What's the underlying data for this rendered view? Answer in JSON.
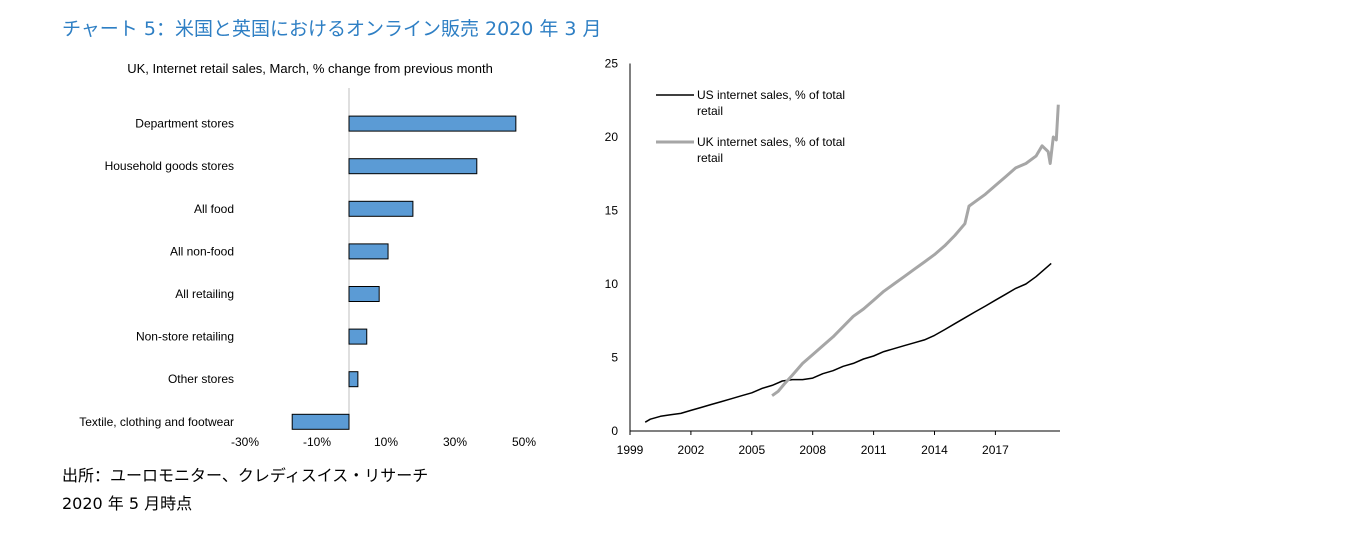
{
  "title": "チャート 5：米国と英国におけるオンライン販売 2020 年 3 月",
  "source": "出所：ユーロモニター、クレディスイス・リサーチ",
  "date_note": "2020 年 5 月時点",
  "colors": {
    "title": "#2e7fc4",
    "bar_fill": "#5b9bd5",
    "us_line": "#000000",
    "uk_line": "#a6a6a6"
  },
  "chart_data": [
    {
      "type": "bar",
      "orientation": "horizontal",
      "title": "UK, Internet retail sales, March, % change from previous month",
      "categories": [
        "Department stores",
        "Household goods stores",
        "All food",
        "All non-food",
        "All retailing",
        "Non-store retailing",
        "Other stores",
        "Textile, clothing and footwear"
      ],
      "values": [
        47,
        36,
        18,
        11,
        8.5,
        5,
        2.5,
        -16
      ],
      "x_tick_labels": [
        "-30%",
        "-10%",
        "10%",
        "30%",
        "50%"
      ],
      "xlim": [
        -30,
        50
      ],
      "grid": false
    },
    {
      "type": "line",
      "title": "",
      "ylim": [
        0,
        25
      ],
      "y_ticks": [
        0,
        5,
        10,
        15,
        20,
        25
      ],
      "x_ticks": [
        1999,
        2002,
        2005,
        2008,
        2011,
        2014,
        2017
      ],
      "legend_position": "top-left",
      "grid": false,
      "series": [
        {
          "name": "US internet sales, % of total retail",
          "points": [
            [
              1999.75,
              0.6
            ],
            [
              2000.0,
              0.8
            ],
            [
              2000.5,
              1.0
            ],
            [
              2001.0,
              1.1
            ],
            [
              2001.5,
              1.2
            ],
            [
              2002.0,
              1.4
            ],
            [
              2002.5,
              1.6
            ],
            [
              2003.0,
              1.8
            ],
            [
              2003.5,
              2.0
            ],
            [
              2004.0,
              2.2
            ],
            [
              2004.5,
              2.4
            ],
            [
              2005.0,
              2.6
            ],
            [
              2005.5,
              2.9
            ],
            [
              2006.0,
              3.1
            ],
            [
              2006.5,
              3.4
            ],
            [
              2007.0,
              3.5
            ],
            [
              2007.5,
              3.5
            ],
            [
              2008.0,
              3.6
            ],
            [
              2008.5,
              3.9
            ],
            [
              2009.0,
              4.1
            ],
            [
              2009.5,
              4.4
            ],
            [
              2010.0,
              4.6
            ],
            [
              2010.5,
              4.9
            ],
            [
              2011.0,
              5.1
            ],
            [
              2011.5,
              5.4
            ],
            [
              2012.0,
              5.6
            ],
            [
              2012.5,
              5.8
            ],
            [
              2013.0,
              6.0
            ],
            [
              2013.5,
              6.2
            ],
            [
              2014.0,
              6.5
            ],
            [
              2014.5,
              6.9
            ],
            [
              2015.0,
              7.3
            ],
            [
              2015.5,
              7.7
            ],
            [
              2016.0,
              8.1
            ],
            [
              2016.5,
              8.5
            ],
            [
              2017.0,
              8.9
            ],
            [
              2017.5,
              9.3
            ],
            [
              2018.0,
              9.7
            ],
            [
              2018.5,
              10.0
            ],
            [
              2019.0,
              10.5
            ],
            [
              2019.5,
              11.1
            ],
            [
              2019.75,
              11.4
            ]
          ]
        },
        {
          "name": "UK internet sales, % of total retail",
          "points": [
            [
              2006.0,
              2.4
            ],
            [
              2006.3,
              2.7
            ],
            [
              2006.6,
              3.2
            ],
            [
              2007.0,
              3.8
            ],
            [
              2007.5,
              4.6
            ],
            [
              2008.0,
              5.2
            ],
            [
              2008.5,
              5.8
            ],
            [
              2009.0,
              6.4
            ],
            [
              2009.5,
              7.1
            ],
            [
              2010.0,
              7.8
            ],
            [
              2010.5,
              8.3
            ],
            [
              2011.0,
              8.9
            ],
            [
              2011.5,
              9.5
            ],
            [
              2012.0,
              10.0
            ],
            [
              2012.5,
              10.5
            ],
            [
              2013.0,
              11.0
            ],
            [
              2013.5,
              11.5
            ],
            [
              2014.0,
              12.0
            ],
            [
              2014.5,
              12.6
            ],
            [
              2015.0,
              13.3
            ],
            [
              2015.5,
              14.1
            ],
            [
              2015.7,
              15.3
            ],
            [
              2016.0,
              15.6
            ],
            [
              2016.5,
              16.1
            ],
            [
              2017.0,
              16.7
            ],
            [
              2017.5,
              17.3
            ],
            [
              2018.0,
              17.9
            ],
            [
              2018.5,
              18.2
            ],
            [
              2019.0,
              18.7
            ],
            [
              2019.3,
              19.4
            ],
            [
              2019.6,
              19.0
            ],
            [
              2019.7,
              18.2
            ],
            [
              2019.85,
              20.0
            ],
            [
              2020.0,
              19.8
            ],
            [
              2020.1,
              22.2
            ]
          ]
        }
      ]
    }
  ]
}
